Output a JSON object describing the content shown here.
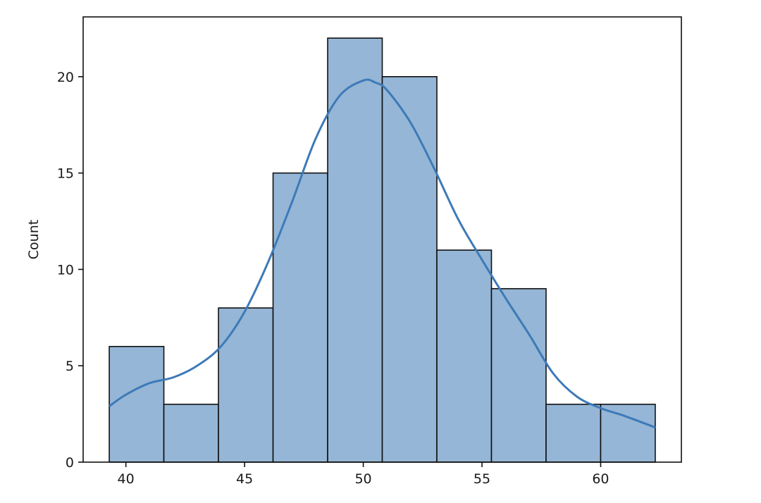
{
  "chart_data": {
    "type": "bar",
    "subtype": "histogram",
    "title": "",
    "xlabel": "",
    "ylabel": "Count",
    "xlim": [
      38.2,
      63.4
    ],
    "ylim": [
      0,
      23.1
    ],
    "xticks": [
      40,
      45,
      50,
      55,
      60
    ],
    "yticks": [
      0,
      5,
      10,
      15,
      20
    ],
    "grid": false,
    "bin_edges": [
      39.3,
      41.6,
      43.9,
      46.2,
      48.5,
      50.8,
      53.1,
      55.4,
      57.7,
      60.0,
      62.3
    ],
    "counts": [
      6,
      3,
      8,
      15,
      22,
      20,
      11,
      9,
      3,
      3
    ],
    "colors": {
      "bar_fill": "#95b6d6",
      "bar_edge": "#111111",
      "kde_line": "#3d7ab8",
      "axes": "#111111"
    },
    "kde": {
      "x": [
        39.3,
        40.0,
        41.0,
        42.0,
        43.0,
        44.0,
        45.0,
        46.0,
        47.0,
        48.0,
        49.0,
        50.0,
        50.5,
        51.0,
        52.0,
        53.0,
        54.0,
        55.0,
        56.0,
        57.0,
        58.0,
        59.0,
        60.0,
        61.0,
        62.3
      ],
      "y": [
        2.9,
        3.5,
        4.1,
        4.4,
        5.0,
        6.0,
        7.8,
        10.4,
        13.5,
        16.8,
        19.0,
        19.8,
        19.7,
        19.3,
        17.6,
        15.2,
        12.6,
        10.5,
        8.5,
        6.6,
        4.6,
        3.4,
        2.8,
        2.4,
        1.8
      ]
    }
  }
}
